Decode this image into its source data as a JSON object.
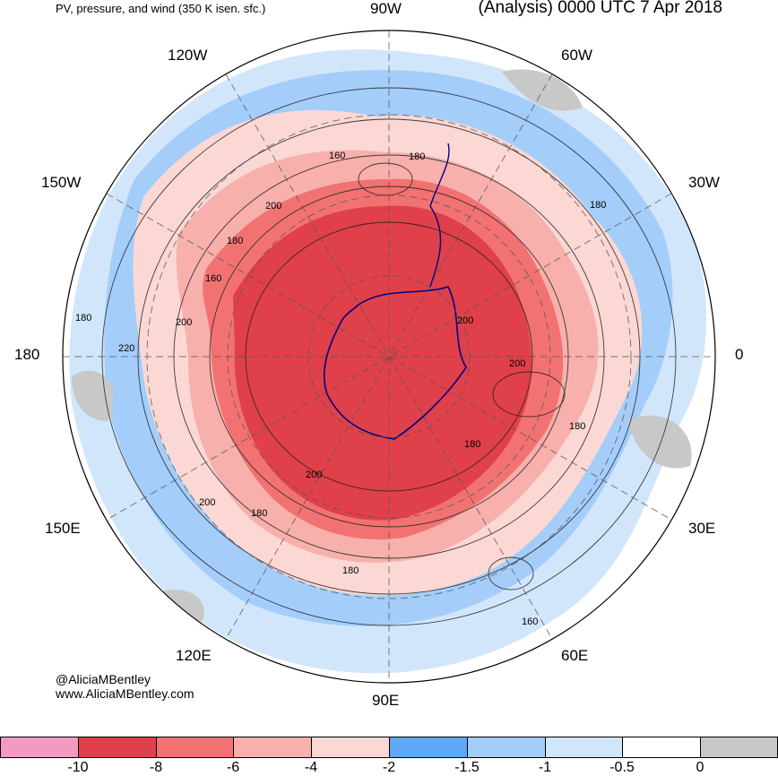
{
  "header": {
    "title_left": "PV, pressure, and wind (350 K isen. sfc.)",
    "title_right": "(Analysis) 0000 UTC 7 Apr 2018"
  },
  "longitudes": {
    "w90": "90W",
    "w60": "60W",
    "w30": "30W",
    "zero": "0",
    "e30": "30E",
    "e60": "60E",
    "e90": "90E",
    "e120": "120E",
    "e150": "150E",
    "d180": "180",
    "w150": "150W",
    "w120": "120W"
  },
  "contour_labels": [
    "160",
    "180",
    "200",
    "180",
    "160",
    "180",
    "200",
    "220",
    "200",
    "200",
    "180",
    "180",
    "200",
    "180",
    "200",
    "180",
    "160",
    "180"
  ],
  "credit": {
    "handle": "@AliciaMBentley",
    "site": "www.AliciaMBentley.com"
  },
  "colorbar": {
    "colors": [
      "#f49ac2",
      "#e0404a",
      "#f27272",
      "#f7b0ab",
      "#fbd8d4",
      "#5fa8f5",
      "#a4cdfa",
      "#d2e6fb",
      "#ffffff",
      "#c8c8c8"
    ],
    "labels": [
      "-10",
      "-8",
      "-6",
      "-4",
      "-2",
      "-1.5",
      "-1",
      "-0.5",
      "0"
    ]
  }
}
